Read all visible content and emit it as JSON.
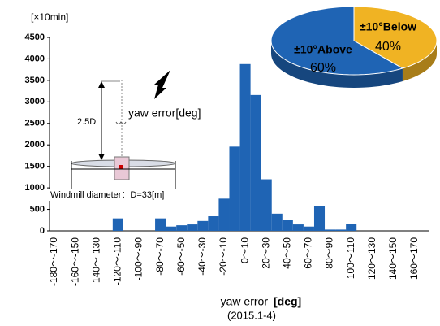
{
  "chart_data": [
    {
      "type": "bar",
      "ylabel": "[×10min]",
      "xlabel": "yaw error",
      "xlabel_unit": "[deg]",
      "subtitle": "(2015.1-4)",
      "annotations": [
        "2.5D",
        "yaw error[deg]",
        "Windmill diameter：D=33[m]"
      ],
      "color": "#1f64b4",
      "categories": [
        "-180～-170",
        null,
        "-160～-150",
        null,
        "-140～-130",
        null,
        "-120～-110",
        null,
        "-100～-90",
        null,
        "-80～-70",
        null,
        "-60～-50",
        null,
        "-40～-30",
        null,
        "-20～-10",
        null,
        "0～10",
        null,
        "20～30",
        null,
        "40～50",
        null,
        "60～70",
        null,
        "80～90",
        null,
        "100～110",
        null,
        "120～130",
        null,
        "140～150",
        null,
        "160～170",
        null
      ],
      "values": [
        0,
        0,
        0,
        0,
        0,
        0,
        290,
        0,
        0,
        0,
        290,
        100,
        130,
        150,
        230,
        340,
        750,
        1960,
        3880,
        3160,
        1200,
        400,
        250,
        150,
        100,
        580,
        30,
        30,
        160,
        0,
        0,
        0,
        0,
        0,
        0,
        0
      ],
      "ylim": [
        0,
        4500
      ],
      "yticks": [
        0,
        500,
        1000,
        1500,
        2000,
        2500,
        3000,
        3500,
        4000,
        4500
      ]
    },
    {
      "type": "pie",
      "categories": [
        "±10°Above",
        "±10°Below"
      ],
      "values": [
        60,
        40
      ],
      "value_labels": [
        "60%",
        "40%"
      ],
      "colors": [
        "#1f64b4",
        "#f0b323"
      ]
    }
  ]
}
